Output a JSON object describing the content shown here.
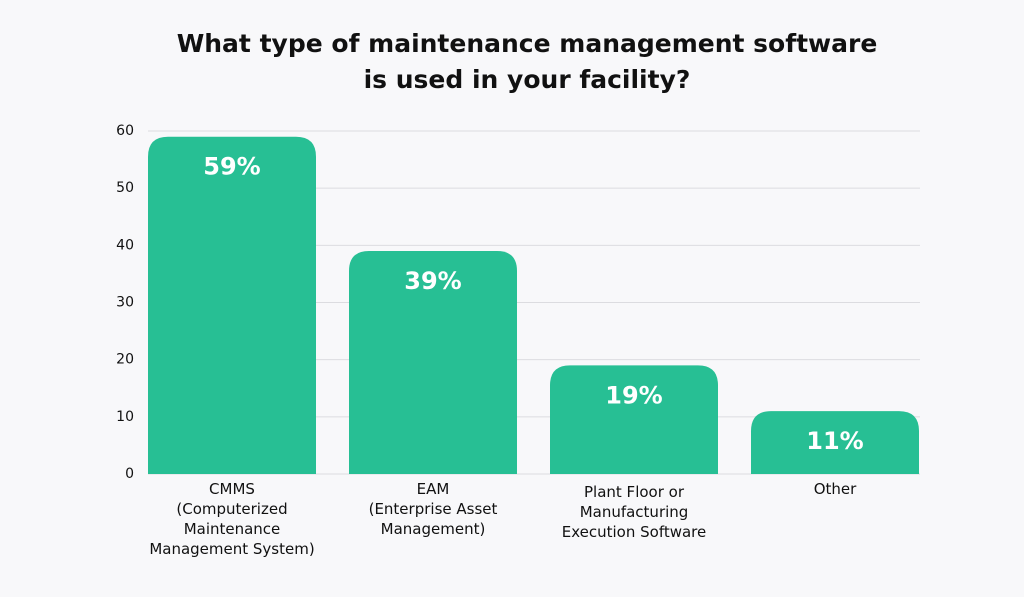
{
  "chart_data": {
    "type": "bar",
    "title": "What type of maintenance management software\nis used in your facility?",
    "categories": [
      "CMMS\n(Computerized\nMaintenance\nManagement System)",
      "EAM\n(Enterprise Asset\nManagement)",
      "Plant Floor or\nManufacturing\nExecution Software",
      "Other"
    ],
    "values": [
      59,
      39,
      19,
      11
    ],
    "value_labels": [
      "59%",
      "39%",
      "19%",
      "11%"
    ],
    "color": "#27bf94",
    "ylim": [
      0,
      60
    ],
    "yticks": [
      0,
      10,
      20,
      30,
      40,
      50,
      60
    ],
    "grid": true
  }
}
